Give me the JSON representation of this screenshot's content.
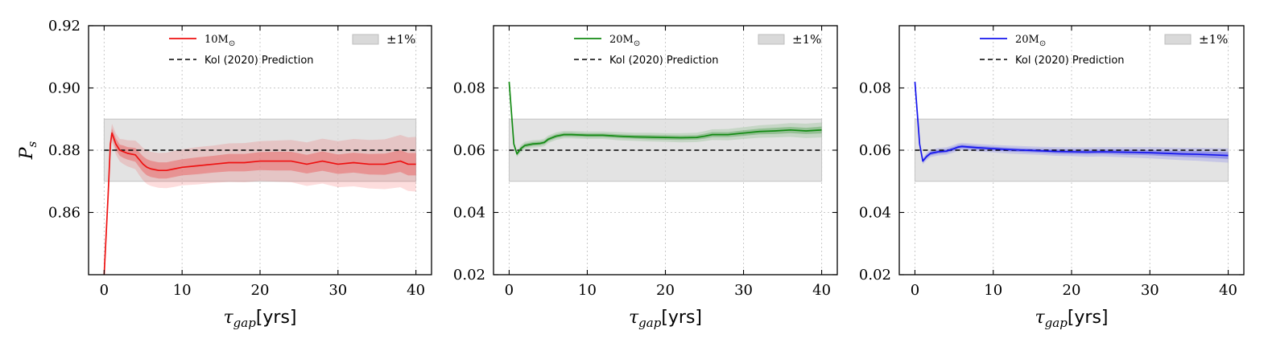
{
  "colors": {
    "band_fill": "#d9d9d9",
    "prediction": "#000000"
  },
  "chart_data": [
    {
      "type": "line",
      "xlabel_sym": "τ",
      "xlabel_sub": "gap",
      "xlabel_unit": "[yrs]",
      "ylabel_sym": "P",
      "ylabel_sub": "s",
      "xlim": [
        -2,
        42
      ],
      "ylim": [
        0.84,
        0.92
      ],
      "xticks": [
        0,
        10,
        20,
        30,
        40
      ],
      "xtick_labels": [
        "0",
        "10",
        "20",
        "30",
        "40"
      ],
      "yticks": [
        0.86,
        0.88,
        0.9,
        0.92
      ],
      "ytick_labels": [
        "0.86",
        "0.88",
        "0.90",
        "0.92"
      ],
      "grid": true,
      "legend_position": "top",
      "color": "#ee1111",
      "series_label": "10M",
      "series_label_sub": "⊙",
      "prediction_label": "Kol (2020) Prediction",
      "band_label": "±1%",
      "prediction_value": 0.88,
      "band": [
        0.87,
        0.89
      ],
      "x": [
        0,
        0.5,
        0.8,
        1,
        1.5,
        2,
        2.5,
        3,
        4,
        4.5,
        5,
        5.5,
        6,
        7,
        8,
        9,
        10,
        12,
        14,
        16,
        18,
        20,
        22,
        24,
        26,
        28,
        30,
        32,
        34,
        36,
        38,
        39,
        40
      ],
      "y": [
        0.84,
        0.865,
        0.882,
        0.8855,
        0.882,
        0.88,
        0.8795,
        0.879,
        0.8785,
        0.877,
        0.8755,
        0.8745,
        0.874,
        0.8735,
        0.8735,
        0.874,
        0.8745,
        0.875,
        0.8755,
        0.876,
        0.876,
        0.8765,
        0.8765,
        0.8765,
        0.8755,
        0.8765,
        0.8755,
        0.876,
        0.8755,
        0.8755,
        0.8765,
        0.8755,
        0.8755
      ],
      "inner_halfwidth": [
        0,
        0.0015,
        0.0015,
        0.0015,
        0.0018,
        0.0018,
        0.002,
        0.002,
        0.0022,
        0.0024,
        0.0025,
        0.0026,
        0.0026,
        0.0026,
        0.0026,
        0.0026,
        0.0026,
        0.0027,
        0.0027,
        0.0028,
        0.0028,
        0.0029,
        0.003,
        0.003,
        0.003,
        0.0031,
        0.0031,
        0.0032,
        0.0033,
        0.0034,
        0.0035,
        0.0036,
        0.0036
      ],
      "outer_halfwidth": [
        0,
        0.003,
        0.003,
        0.003,
        0.0034,
        0.0036,
        0.004,
        0.0042,
        0.0046,
        0.005,
        0.0052,
        0.0054,
        0.0055,
        0.0056,
        0.0057,
        0.0058,
        0.0058,
        0.006,
        0.006,
        0.0062,
        0.0063,
        0.0064,
        0.0066,
        0.0068,
        0.007,
        0.0072,
        0.0074,
        0.0076,
        0.0078,
        0.008,
        0.0084,
        0.0086,
        0.0088
      ]
    },
    {
      "type": "line",
      "xlabel_sym": "τ",
      "xlabel_sub": "gap",
      "xlabel_unit": "[yrs]",
      "ylabel_sym": "",
      "ylabel_sub": "",
      "xlim": [
        -2,
        42
      ],
      "ylim": [
        0.02,
        0.1
      ],
      "xticks": [
        0,
        10,
        20,
        30,
        40
      ],
      "xtick_labels": [
        "0",
        "10",
        "20",
        "30",
        "40"
      ],
      "yticks": [
        0.02,
        0.04,
        0.06,
        0.08
      ],
      "ytick_labels": [
        "0.02",
        "0.04",
        "0.06",
        "0.08"
      ],
      "grid": true,
      "legend_position": "top",
      "color": "#138a13",
      "series_label": "20M",
      "series_label_sub": "⊙",
      "prediction_label": "Kol (2020) Prediction",
      "band_label": "±1%",
      "prediction_value": 0.06,
      "band": [
        0.05,
        0.07
      ],
      "x": [
        0,
        0.3,
        0.6,
        1,
        1.5,
        2,
        3,
        4,
        4.5,
        5,
        5.5,
        6,
        7,
        8,
        10,
        12,
        14,
        16,
        18,
        20,
        22,
        24,
        25,
        26,
        28,
        30,
        32,
        34,
        36,
        38,
        40
      ],
      "y": [
        0.082,
        0.072,
        0.062,
        0.0588,
        0.0605,
        0.0615,
        0.062,
        0.0622,
        0.0625,
        0.0635,
        0.064,
        0.0645,
        0.065,
        0.065,
        0.0648,
        0.0648,
        0.0645,
        0.0643,
        0.0642,
        0.0641,
        0.064,
        0.0641,
        0.0645,
        0.065,
        0.065,
        0.0655,
        0.066,
        0.0662,
        0.0665,
        0.0662,
        0.0665
      ],
      "inner_halfwidth": [
        0,
        0.0003,
        0.0004,
        0.0005,
        0.0006,
        0.0006,
        0.0006,
        0.0006,
        0.0006,
        0.0006,
        0.0006,
        0.0006,
        0.0006,
        0.0006,
        0.0006,
        0.0006,
        0.0006,
        0.0006,
        0.0007,
        0.0007,
        0.0007,
        0.0007,
        0.0008,
        0.0008,
        0.0008,
        0.0009,
        0.0009,
        0.001,
        0.001,
        0.001,
        0.0011
      ],
      "outer_halfwidth": [
        0,
        0.0006,
        0.0008,
        0.001,
        0.0012,
        0.0012,
        0.0012,
        0.0012,
        0.0012,
        0.0012,
        0.0012,
        0.0012,
        0.0012,
        0.0012,
        0.0012,
        0.0012,
        0.0013,
        0.0013,
        0.0014,
        0.0014,
        0.0015,
        0.0015,
        0.0016,
        0.0017,
        0.0018,
        0.0019,
        0.002,
        0.0021,
        0.0022,
        0.0023,
        0.0024
      ]
    },
    {
      "type": "line",
      "xlabel_sym": "τ",
      "xlabel_sub": "gap",
      "xlabel_unit": "[yrs]",
      "ylabel_sym": "",
      "ylabel_sub": "",
      "xlim": [
        -2,
        42
      ],
      "ylim": [
        0.02,
        0.1
      ],
      "xticks": [
        0,
        10,
        20,
        30,
        40
      ],
      "xtick_labels": [
        "0",
        "10",
        "20",
        "30",
        "40"
      ],
      "yticks": [
        0.02,
        0.04,
        0.06,
        0.08
      ],
      "ytick_labels": [
        "0.02",
        "0.04",
        "0.06",
        "0.08"
      ],
      "grid": true,
      "legend_position": "top",
      "color": "#1414ee",
      "series_label": "20M",
      "series_label_sub": "⊙",
      "prediction_label": "Kol (2020) Prediction",
      "band_label": "±1%",
      "prediction_value": 0.06,
      "band": [
        0.05,
        0.07
      ],
      "x": [
        0,
        0.3,
        0.6,
        1,
        1.5,
        2,
        3,
        4,
        5,
        5.5,
        6,
        7,
        8,
        10,
        12,
        14,
        16,
        18,
        20,
        22,
        24,
        26,
        28,
        30,
        32,
        34,
        36,
        38,
        40
      ],
      "y": [
        0.082,
        0.072,
        0.062,
        0.0565,
        0.058,
        0.059,
        0.0595,
        0.0597,
        0.0605,
        0.061,
        0.0612,
        0.061,
        0.0608,
        0.0605,
        0.0602,
        0.06,
        0.0598,
        0.0596,
        0.0595,
        0.0594,
        0.0595,
        0.0594,
        0.0593,
        0.0592,
        0.059,
        0.0588,
        0.0587,
        0.0585,
        0.0583
      ],
      "inner_halfwidth": [
        0,
        0.0003,
        0.0004,
        0.0005,
        0.0006,
        0.0006,
        0.0006,
        0.0006,
        0.0006,
        0.0006,
        0.0006,
        0.0006,
        0.0006,
        0.0006,
        0.0006,
        0.0006,
        0.0006,
        0.0007,
        0.0007,
        0.0007,
        0.0007,
        0.0008,
        0.0008,
        0.0008,
        0.0009,
        0.0009,
        0.001,
        0.001,
        0.0011
      ],
      "outer_halfwidth": [
        0,
        0.0006,
        0.0008,
        0.001,
        0.0012,
        0.0012,
        0.0012,
        0.0012,
        0.0012,
        0.0012,
        0.0012,
        0.0012,
        0.0012,
        0.0012,
        0.0013,
        0.0013,
        0.0013,
        0.0014,
        0.0014,
        0.0015,
        0.0015,
        0.0016,
        0.0017,
        0.0018,
        0.0019,
        0.002,
        0.0021,
        0.0022,
        0.0023
      ]
    }
  ]
}
